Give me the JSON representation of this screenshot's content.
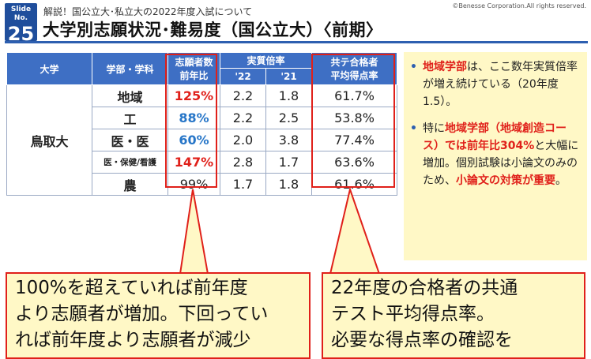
{
  "header": {
    "slide_label": "Slide No.",
    "slide_number": "25",
    "subtitle": "解説！国公立大･私立大の2022年度入試について",
    "copyright": "©Benesse Corporation.All rights reserved.",
    "title": "大学別志願状況･難易度（国公立大）〈前期〉"
  },
  "table": {
    "headers": {
      "university": "大学",
      "department": "学部・学科",
      "applicants_line1": "志願者数",
      "applicants_line2": "前年比",
      "ratio": "実質倍率",
      "y22": "'22",
      "y21": "'21",
      "score_line1": "共テ合格者",
      "score_line2": "平均得点率"
    },
    "university": "鳥取大",
    "rows": [
      {
        "dept": "地域",
        "change": "125%",
        "change_color": "red",
        "r22": "2.2",
        "r21": "1.8",
        "score": "61.7%"
      },
      {
        "dept": "工",
        "change": "88%",
        "change_color": "blue",
        "r22": "2.2",
        "r21": "2.5",
        "score": "53.8%"
      },
      {
        "dept": "医・医",
        "change": "60%",
        "change_color": "blue",
        "r22": "2.0",
        "r21": "3.8",
        "score": "77.4%"
      },
      {
        "dept": "医・保健/看護",
        "change": "147%",
        "change_color": "red",
        "r22": "2.8",
        "r21": "1.7",
        "score": "63.6%"
      },
      {
        "dept": "農",
        "change": "99%",
        "change_color": "plain",
        "r22": "1.7",
        "r21": "1.8",
        "score": "61.6%"
      }
    ]
  },
  "note": {
    "bullet": "•",
    "item1_em": "地域学部",
    "item1_text": "は、ここ数年実質倍率が増え続けている（20年度1.5）。",
    "item2_pre": "特に",
    "item2_em1": "地域学部（地域創造コース）では前年比304%",
    "item2_mid": "と大幅に増加。個別試験は小論文のみのため、",
    "item2_em2": "小論文の対策が重要",
    "item2_end": "。"
  },
  "callouts": {
    "left_lines": [
      "100%を超えていれば前年度",
      "より志願者が増加。下回ってい",
      "れば前年度より志願者が減少"
    ],
    "right_lines": [
      "22年度の合格者の共通",
      "テスト平均得点率。",
      "必要な得点率の確認を"
    ]
  },
  "colors": {
    "header_blue": "#3e6fc4",
    "accent_red": "#e0201a",
    "accent_blue": "#2776c8",
    "note_bg": "#fff8c6"
  }
}
